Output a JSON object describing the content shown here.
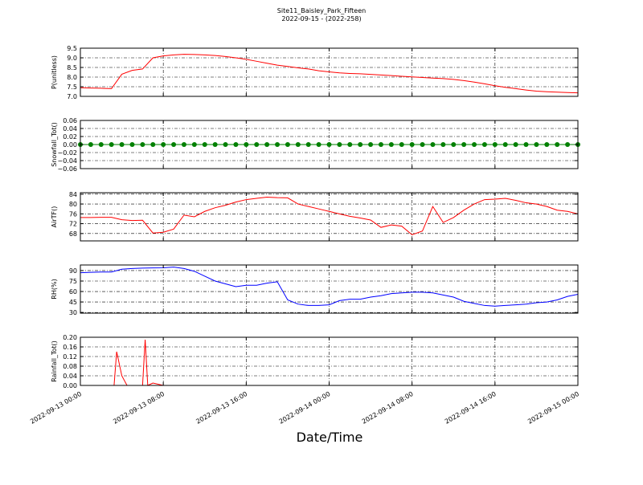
{
  "title": "Site11_Baisley_Park_Fifteen",
  "subtitle": "2022-09-15 - (2022-258)",
  "chart_data": [
    {
      "type": "line",
      "ylabel": "P(unitless)",
      "grid": true,
      "xticklabels": false,
      "x": [
        "2022-09-13 00:00",
        "2022-09-13 01:00",
        "2022-09-13 02:00",
        "2022-09-13 03:00",
        "2022-09-13 04:00",
        "2022-09-13 05:00",
        "2022-09-13 06:00",
        "2022-09-13 07:00",
        "2022-09-13 08:00",
        "2022-09-13 09:00",
        "2022-09-13 10:00",
        "2022-09-13 11:00",
        "2022-09-13 12:00",
        "2022-09-13 13:00",
        "2022-09-13 14:00",
        "2022-09-13 15:00",
        "2022-09-13 16:00",
        "2022-09-13 17:00",
        "2022-09-13 18:00",
        "2022-09-13 19:00",
        "2022-09-13 20:00",
        "2022-09-13 21:00",
        "2022-09-13 22:00",
        "2022-09-13 23:00",
        "2022-09-14 00:00",
        "2022-09-14 01:00",
        "2022-09-14 02:00",
        "2022-09-14 03:00",
        "2022-09-14 04:00",
        "2022-09-14 05:00",
        "2022-09-14 06:00",
        "2022-09-14 07:00",
        "2022-09-14 08:00",
        "2022-09-14 09:00",
        "2022-09-14 10:00",
        "2022-09-14 11:00",
        "2022-09-14 12:00",
        "2022-09-14 13:00",
        "2022-09-14 14:00",
        "2022-09-14 15:00",
        "2022-09-14 16:00",
        "2022-09-14 17:00",
        "2022-09-14 18:00",
        "2022-09-14 19:00",
        "2022-09-14 20:00",
        "2022-09-14 21:00",
        "2022-09-14 22:00",
        "2022-09-14 23:00",
        "2022-09-15 00:00"
      ],
      "series": [
        {
          "name": "P",
          "color": "#ff0000",
          "values": [
            7.45,
            7.43,
            7.42,
            7.4,
            8.15,
            8.35,
            8.42,
            9.0,
            9.1,
            9.15,
            9.18,
            9.17,
            9.15,
            9.12,
            9.07,
            9.0,
            8.92,
            8.82,
            8.72,
            8.62,
            8.55,
            8.48,
            8.42,
            8.33,
            8.27,
            8.22,
            8.19,
            8.17,
            8.14,
            8.11,
            8.08,
            8.04,
            8.01,
            7.98,
            7.95,
            7.92,
            7.88,
            7.82,
            7.74,
            7.65,
            7.55,
            7.47,
            7.4,
            7.33,
            7.27,
            7.24,
            7.22,
            7.2,
            7.18
          ]
        }
      ],
      "xlim": [
        "2022-09-13 00:00",
        "2022-09-15 00:00"
      ],
      "xticks": [
        "2022-09-13 00:00",
        "2022-09-13 08:00",
        "2022-09-13 16:00",
        "2022-09-14 00:00",
        "2022-09-14 08:00",
        "2022-09-14 16:00",
        "2022-09-15 00:00"
      ],
      "ylim": [
        7.0,
        9.5
      ],
      "yticks": [
        {
          "value": 7,
          "label": "7.0"
        },
        7.5,
        {
          "value": 8,
          "label": "8.0"
        },
        8.5,
        {
          "value": 9,
          "label": "9.0"
        },
        9.5
      ]
    },
    {
      "type": "line",
      "ylabel": "Snowfall_Tot()",
      "grid": true,
      "xticklabels": false,
      "markers": true,
      "x": [
        "2022-09-13 00:00",
        "2022-09-13 01:00",
        "2022-09-13 02:00",
        "2022-09-13 03:00",
        "2022-09-13 04:00",
        "2022-09-13 05:00",
        "2022-09-13 06:00",
        "2022-09-13 07:00",
        "2022-09-13 08:00",
        "2022-09-13 09:00",
        "2022-09-13 10:00",
        "2022-09-13 11:00",
        "2022-09-13 12:00",
        "2022-09-13 13:00",
        "2022-09-13 14:00",
        "2022-09-13 15:00",
        "2022-09-13 16:00",
        "2022-09-13 17:00",
        "2022-09-13 18:00",
        "2022-09-13 19:00",
        "2022-09-13 20:00",
        "2022-09-13 21:00",
        "2022-09-13 22:00",
        "2022-09-13 23:00",
        "2022-09-14 00:00",
        "2022-09-14 01:00",
        "2022-09-14 02:00",
        "2022-09-14 03:00",
        "2022-09-14 04:00",
        "2022-09-14 05:00",
        "2022-09-14 06:00",
        "2022-09-14 07:00",
        "2022-09-14 08:00",
        "2022-09-14 09:00",
        "2022-09-14 10:00",
        "2022-09-14 11:00",
        "2022-09-14 12:00",
        "2022-09-14 13:00",
        "2022-09-14 14:00",
        "2022-09-14 15:00",
        "2022-09-14 16:00",
        "2022-09-14 17:00",
        "2022-09-14 18:00",
        "2022-09-14 19:00",
        "2022-09-14 20:00",
        "2022-09-14 21:00",
        "2022-09-14 22:00",
        "2022-09-14 23:00",
        "2022-09-15 00:00"
      ],
      "series": [
        {
          "name": "Snowfall_Tot",
          "color": "#008000",
          "values": [
            0,
            0,
            0,
            0,
            0,
            0,
            0,
            0,
            0,
            0,
            0,
            0,
            0,
            0,
            0,
            0,
            0,
            0,
            0,
            0,
            0,
            0,
            0,
            0,
            0,
            0,
            0,
            0,
            0,
            0,
            0,
            0,
            0,
            0,
            0,
            0,
            0,
            0,
            0,
            0,
            0,
            0,
            0,
            0,
            0,
            0,
            0,
            0,
            0
          ]
        }
      ],
      "xlim": [
        "2022-09-13 00:00",
        "2022-09-15 00:00"
      ],
      "xticks": [
        "2022-09-13 00:00",
        "2022-09-13 08:00",
        "2022-09-13 16:00",
        "2022-09-14 00:00",
        "2022-09-14 08:00",
        "2022-09-14 16:00",
        "2022-09-15 00:00"
      ],
      "ylim": [
        -0.06,
        0.06
      ],
      "yticks": [
        {
          "value": -0.06,
          "label": "−0.06"
        },
        {
          "value": -0.04,
          "label": "−0.04"
        },
        {
          "value": -0.02,
          "label": "−0.02"
        },
        {
          "value": 0,
          "label": "0.00"
        },
        0.02,
        0.04,
        0.06
      ]
    },
    {
      "type": "line",
      "ylabel": "AirTF()",
      "grid": true,
      "xticklabels": false,
      "x": [
        "2022-09-13 00:00",
        "2022-09-13 01:00",
        "2022-09-13 02:00",
        "2022-09-13 03:00",
        "2022-09-13 04:00",
        "2022-09-13 05:00",
        "2022-09-13 06:00",
        "2022-09-13 07:00",
        "2022-09-13 08:00",
        "2022-09-13 09:00",
        "2022-09-13 10:00",
        "2022-09-13 11:00",
        "2022-09-13 12:00",
        "2022-09-13 13:00",
        "2022-09-13 14:00",
        "2022-09-13 15:00",
        "2022-09-13 16:00",
        "2022-09-13 17:00",
        "2022-09-13 18:00",
        "2022-09-13 19:00",
        "2022-09-13 20:00",
        "2022-09-13 21:00",
        "2022-09-13 22:00",
        "2022-09-13 23:00",
        "2022-09-14 00:00",
        "2022-09-14 01:00",
        "2022-09-14 02:00",
        "2022-09-14 03:00",
        "2022-09-14 04:00",
        "2022-09-14 05:00",
        "2022-09-14 06:00",
        "2022-09-14 07:00",
        "2022-09-14 08:00",
        "2022-09-14 09:00",
        "2022-09-14 10:00",
        "2022-09-14 11:00",
        "2022-09-14 12:00",
        "2022-09-14 13:00",
        "2022-09-14 14:00",
        "2022-09-14 15:00",
        "2022-09-14 16:00",
        "2022-09-14 17:00",
        "2022-09-14 18:00",
        "2022-09-14 19:00",
        "2022-09-14 20:00",
        "2022-09-14 21:00",
        "2022-09-14 22:00",
        "2022-09-14 23:00",
        "2022-09-15 00:00"
      ],
      "series": [
        {
          "name": "AirTF",
          "color": "#ff0000",
          "values": [
            74.5,
            74.5,
            74.6,
            74.6,
            73.6,
            73.3,
            73.4,
            68.2,
            68.5,
            69.8,
            75.5,
            74.8,
            77,
            78.5,
            79.5,
            80.8,
            81.8,
            82.3,
            82.8,
            82.6,
            82.5,
            80,
            79,
            78,
            77,
            76,
            75,
            74.3,
            73.5,
            70.5,
            71.5,
            71,
            67.5,
            69,
            79,
            72.5,
            74.5,
            77.5,
            80,
            81.8,
            82,
            82.3,
            81.5,
            80.5,
            80,
            79,
            77.5,
            77,
            76
          ]
        }
      ],
      "xlim": [
        "2022-09-13 00:00",
        "2022-09-15 00:00"
      ],
      "xticks": [
        "2022-09-13 00:00",
        "2022-09-13 08:00",
        "2022-09-13 16:00",
        "2022-09-14 00:00",
        "2022-09-14 08:00",
        "2022-09-14 16:00",
        "2022-09-15 00:00"
      ],
      "ylim": [
        65,
        84.6
      ],
      "yticks": [
        68,
        72,
        76,
        80,
        84
      ]
    },
    {
      "type": "line",
      "ylabel": "RH(%)",
      "grid": true,
      "xticklabels": false,
      "x": [
        "2022-09-13 00:00",
        "2022-09-13 01:00",
        "2022-09-13 02:00",
        "2022-09-13 03:00",
        "2022-09-13 04:00",
        "2022-09-13 05:00",
        "2022-09-13 06:00",
        "2022-09-13 07:00",
        "2022-09-13 08:00",
        "2022-09-13 09:00",
        "2022-09-13 10:00",
        "2022-09-13 11:00",
        "2022-09-13 12:00",
        "2022-09-13 13:00",
        "2022-09-13 14:00",
        "2022-09-13 15:00",
        "2022-09-13 16:00",
        "2022-09-13 17:00",
        "2022-09-13 18:00",
        "2022-09-13 19:00",
        "2022-09-13 20:00",
        "2022-09-13 21:00",
        "2022-09-13 22:00",
        "2022-09-13 23:00",
        "2022-09-14 00:00",
        "2022-09-14 01:00",
        "2022-09-14 02:00",
        "2022-09-14 03:00",
        "2022-09-14 04:00",
        "2022-09-14 05:00",
        "2022-09-14 06:00",
        "2022-09-14 07:00",
        "2022-09-14 08:00",
        "2022-09-14 09:00",
        "2022-09-14 10:00",
        "2022-09-14 11:00",
        "2022-09-14 12:00",
        "2022-09-14 13:00",
        "2022-09-14 14:00",
        "2022-09-14 15:00",
        "2022-09-14 16:00",
        "2022-09-14 17:00",
        "2022-09-14 18:00",
        "2022-09-14 19:00",
        "2022-09-14 20:00",
        "2022-09-14 21:00",
        "2022-09-14 22:00",
        "2022-09-14 23:00",
        "2022-09-15 00:00"
      ],
      "series": [
        {
          "name": "RH",
          "color": "#0000ff",
          "values": [
            87,
            87.5,
            88,
            88,
            92,
            93,
            93.5,
            93.8,
            94,
            95,
            93,
            89,
            82,
            75,
            71,
            67,
            69,
            69,
            72,
            74,
            48,
            42,
            40,
            40,
            41,
            47,
            49,
            49,
            52,
            54,
            57,
            58,
            59,
            59,
            58,
            55,
            52,
            46,
            43,
            40,
            39,
            40,
            41,
            42,
            44,
            45,
            48,
            53,
            56
          ]
        }
      ],
      "xlim": [
        "2022-09-13 00:00",
        "2022-09-15 00:00"
      ],
      "xticks": [
        "2022-09-13 00:00",
        "2022-09-13 08:00",
        "2022-09-13 16:00",
        "2022-09-14 00:00",
        "2022-09-14 08:00",
        "2022-09-14 16:00",
        "2022-09-15 00:00"
      ],
      "ylim": [
        29,
        98
      ],
      "yticks": [
        30,
        45,
        60,
        75,
        90
      ]
    },
    {
      "type": "line",
      "ylabel": "Rainfall_Tot()",
      "xlabel": "Date/Time",
      "grid": true,
      "xticklabels": true,
      "x": [
        "2022-09-13 00:00",
        "2022-09-13 01:00",
        "2022-09-13 02:00",
        "2022-09-13 03:00",
        "2022-09-13 03:15",
        "2022-09-13 03:30",
        "2022-09-13 04:00",
        "2022-09-13 04:30",
        "2022-09-13 05:00",
        "2022-09-13 06:00",
        "2022-09-13 06:15",
        "2022-09-13 06:30",
        "2022-09-13 07:00",
        "2022-09-13 08:00",
        "2022-09-13 09:00",
        "2022-09-13 10:00",
        "2022-09-13 11:00",
        "2022-09-13 12:00",
        "2022-09-13 13:00",
        "2022-09-13 14:00",
        "2022-09-13 15:00",
        "2022-09-13 16:00",
        "2022-09-13 17:00",
        "2022-09-13 18:00",
        "2022-09-13 19:00",
        "2022-09-13 20:00",
        "2022-09-13 21:00",
        "2022-09-13 22:00",
        "2022-09-13 23:00",
        "2022-09-14 00:00",
        "2022-09-14 01:00",
        "2022-09-14 02:00",
        "2022-09-14 03:00",
        "2022-09-14 04:00",
        "2022-09-14 05:00",
        "2022-09-14 06:00",
        "2022-09-14 07:00",
        "2022-09-14 08:00",
        "2022-09-14 09:00",
        "2022-09-14 10:00",
        "2022-09-14 11:00",
        "2022-09-14 12:00",
        "2022-09-14 13:00",
        "2022-09-14 14:00",
        "2022-09-14 15:00",
        "2022-09-14 16:00",
        "2022-09-14 17:00",
        "2022-09-14 18:00",
        "2022-09-14 19:00",
        "2022-09-14 20:00",
        "2022-09-14 21:00",
        "2022-09-14 22:00",
        "2022-09-14 23:00",
        "2022-09-15 00:00"
      ],
      "series": [
        {
          "name": "Rainfall_Tot",
          "color": "#ff0000",
          "values": [
            0,
            0,
            0,
            0,
            0,
            0.14,
            0.04,
            0,
            0,
            0,
            0.19,
            0,
            0.01,
            0,
            0,
            0,
            0,
            0,
            0,
            0,
            0,
            0,
            0,
            0,
            0,
            0,
            0,
            0,
            0,
            0,
            0,
            0,
            0,
            0,
            0,
            0,
            0,
            0,
            0,
            0,
            0,
            0,
            0,
            0,
            0,
            0,
            0,
            0,
            0,
            0,
            0,
            0,
            0,
            0
          ]
        }
      ],
      "xlim": [
        "2022-09-13 00:00",
        "2022-09-15 00:00"
      ],
      "xticks": [
        "2022-09-13 00:00",
        "2022-09-13 08:00",
        "2022-09-13 16:00",
        "2022-09-14 00:00",
        "2022-09-14 08:00",
        "2022-09-14 16:00",
        "2022-09-15 00:00"
      ],
      "ylim": [
        0,
        0.2
      ],
      "yticks": [
        {
          "value": 0,
          "label": "0.00"
        },
        0.04,
        0.08,
        0.12,
        0.16,
        {
          "value": 0.2,
          "label": "0.20"
        }
      ]
    }
  ]
}
